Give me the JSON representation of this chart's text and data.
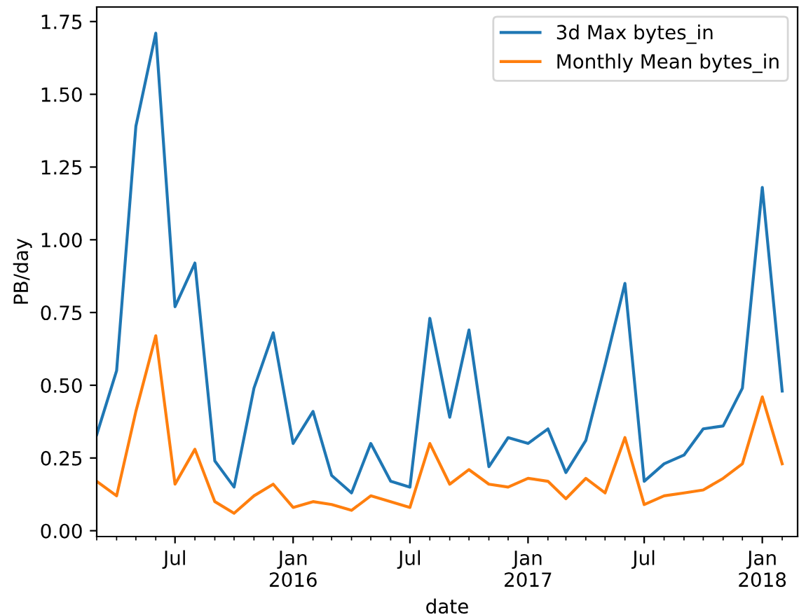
{
  "chart_data": {
    "type": "line",
    "xlabel": "date",
    "ylabel": "PB/day",
    "x": [
      "2015-03",
      "2015-04",
      "2015-05",
      "2015-06",
      "2015-07",
      "2015-08",
      "2015-09",
      "2015-10",
      "2015-11",
      "2015-12",
      "2016-01",
      "2016-02",
      "2016-03",
      "2016-04",
      "2016-05",
      "2016-06",
      "2016-07",
      "2016-08",
      "2016-09",
      "2016-10",
      "2016-11",
      "2016-12",
      "2017-01",
      "2017-02",
      "2017-03",
      "2017-04",
      "2017-05",
      "2017-06",
      "2017-07",
      "2017-08",
      "2017-09",
      "2017-10",
      "2017-11",
      "2017-12",
      "2018-01",
      "2018-02"
    ],
    "series": [
      {
        "name": "3d Max bytes_in",
        "color": "#1f77b4",
        "values": [
          0.33,
          0.55,
          1.39,
          1.71,
          0.77,
          0.92,
          0.24,
          0.15,
          0.49,
          0.68,
          0.3,
          0.41,
          0.19,
          0.13,
          0.3,
          0.17,
          0.15,
          0.73,
          0.39,
          0.69,
          0.22,
          0.32,
          0.3,
          0.35,
          0.2,
          0.31,
          0.57,
          0.85,
          0.17,
          0.23,
          0.26,
          0.35,
          0.36,
          0.49,
          1.18,
          0.48
        ]
      },
      {
        "name": "Monthly Mean bytes_in",
        "color": "#ff7f0e",
        "values": [
          0.17,
          0.12,
          0.41,
          0.67,
          0.16,
          0.28,
          0.1,
          0.06,
          0.12,
          0.16,
          0.08,
          0.1,
          0.09,
          0.07,
          0.12,
          0.1,
          0.08,
          0.3,
          0.16,
          0.21,
          0.16,
          0.15,
          0.18,
          0.17,
          0.11,
          0.18,
          0.13,
          0.32,
          0.09,
          0.12,
          0.13,
          0.14,
          0.18,
          0.23,
          0.46,
          0.23
        ]
      }
    ],
    "xlim": [
      "2015-03",
      "2018-02-25"
    ],
    "xticks": [
      {
        "value": "2015-03",
        "label": null
      },
      {
        "value": "2015-04",
        "label": null
      },
      {
        "value": "2015-05",
        "label": null
      },
      {
        "value": "2015-06",
        "label": null
      },
      {
        "value": "2015-07",
        "label": "Jul"
      },
      {
        "value": "2015-08",
        "label": null
      },
      {
        "value": "2015-09",
        "label": null
      },
      {
        "value": "2015-10",
        "label": null
      },
      {
        "value": "2015-11",
        "label": null
      },
      {
        "value": "2015-12",
        "label": null
      },
      {
        "value": "2016-01",
        "label": "Jan\n2016"
      },
      {
        "value": "2016-02",
        "label": null
      },
      {
        "value": "2016-03",
        "label": null
      },
      {
        "value": "2016-04",
        "label": null
      },
      {
        "value": "2016-05",
        "label": null
      },
      {
        "value": "2016-06",
        "label": null
      },
      {
        "value": "2016-07",
        "label": "Jul"
      },
      {
        "value": "2016-08",
        "label": null
      },
      {
        "value": "2016-09",
        "label": null
      },
      {
        "value": "2016-10",
        "label": null
      },
      {
        "value": "2016-11",
        "label": null
      },
      {
        "value": "2016-12",
        "label": null
      },
      {
        "value": "2017-01",
        "label": "Jan\n2017"
      },
      {
        "value": "2017-02",
        "label": null
      },
      {
        "value": "2017-03",
        "label": null
      },
      {
        "value": "2017-04",
        "label": null
      },
      {
        "value": "2017-05",
        "label": null
      },
      {
        "value": "2017-06",
        "label": null
      },
      {
        "value": "2017-07",
        "label": "Jul"
      },
      {
        "value": "2017-08",
        "label": null
      },
      {
        "value": "2017-09",
        "label": null
      },
      {
        "value": "2017-10",
        "label": null
      },
      {
        "value": "2017-11",
        "label": null
      },
      {
        "value": "2017-12",
        "label": null
      },
      {
        "value": "2018-01",
        "label": "Jan\n2018"
      },
      {
        "value": "2018-02",
        "label": null
      }
    ],
    "ylim": [
      -0.02,
      1.8
    ],
    "yticks": [
      {
        "value": 0,
        "label": "0.00"
      },
      {
        "value": 0.25,
        "label": "0.25"
      },
      {
        "value": 0.5,
        "label": "0.50"
      },
      {
        "value": 0.75,
        "label": "0.75"
      },
      {
        "value": 1.0,
        "label": "1.00"
      },
      {
        "value": 1.25,
        "label": "1.25"
      },
      {
        "value": 1.5,
        "label": "1.50"
      },
      {
        "value": 1.75,
        "label": "1.75"
      }
    ],
    "grid": false,
    "legend": "top right"
  }
}
